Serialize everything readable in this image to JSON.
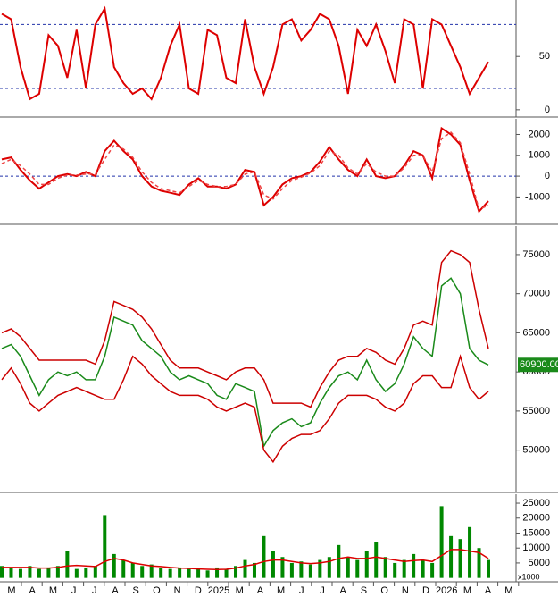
{
  "chart_data": [
    {
      "type": "line",
      "ylim": [
        -6,
        103
      ],
      "yticks": [
        0,
        50
      ],
      "levels": [
        20,
        80
      ],
      "series": [
        {
          "color": "#dd0000",
          "values": [
            90,
            85,
            40,
            10,
            15,
            70,
            60,
            30,
            75,
            20,
            80,
            95,
            40,
            25,
            15,
            20,
            10,
            30,
            60,
            80,
            20,
            15,
            75,
            70,
            30,
            25,
            85,
            40,
            15,
            40,
            80,
            85,
            65,
            75,
            90,
            85,
            60,
            15,
            75,
            60,
            80,
            55,
            25,
            85,
            80,
            20,
            85,
            80,
            60,
            40,
            15,
            30,
            45
          ]
        }
      ]
    },
    {
      "type": "line",
      "ylim": [
        -2270,
        2750
      ],
      "yticks": [
        -1000,
        0,
        1000,
        2000
      ],
      "levels": [
        0
      ],
      "series": [
        {
          "color": "#dd0000",
          "values": [
            800,
            900,
            300,
            -200,
            -600,
            -300,
            0,
            100,
            0,
            200,
            0,
            1200,
            1700,
            1200,
            800,
            0,
            -500,
            -700,
            -800,
            -900,
            -400,
            -100,
            -500,
            -500,
            -600,
            -400,
            300,
            200,
            -1400,
            -1000,
            -400,
            -100,
            0,
            200,
            700,
            1400,
            800,
            300,
            0,
            800,
            0,
            -100,
            0,
            500,
            1200,
            1000,
            -100,
            2300,
            2000,
            1500,
            -200,
            -1700,
            -1200
          ]
        },
        {
          "color": "#ee4444",
          "dashed": true,
          "values": [
            600,
            800,
            500,
            100,
            -400,
            -400,
            -100,
            50,
            50,
            100,
            100,
            800,
            1500,
            1300,
            900,
            200,
            -300,
            -600,
            -700,
            -800,
            -500,
            -200,
            -400,
            -500,
            -500,
            -400,
            100,
            200,
            -900,
            -1100,
            -600,
            -200,
            -50,
            150,
            500,
            1200,
            1000,
            400,
            100,
            600,
            200,
            0,
            0,
            400,
            1000,
            1000,
            200,
            1800,
            2100,
            1600,
            100,
            -1600,
            -1400
          ]
        }
      ]
    },
    {
      "type": "line",
      "ylim": [
        44700,
        78650
      ],
      "yticks": [
        50000,
        55000,
        60000,
        65000,
        70000,
        75000
      ],
      "last": {
        "value": 60900,
        "label": "60900.00"
      },
      "series": [
        {
          "color": "#1a8a1a",
          "values": [
            63000,
            63500,
            62000,
            59500,
            57000,
            59000,
            60000,
            59500,
            60000,
            59000,
            59000,
            62000,
            67000,
            66500,
            66000,
            64000,
            63000,
            62000,
            60000,
            59000,
            59500,
            59000,
            58500,
            57000,
            56500,
            58500,
            58000,
            57500,
            50500,
            52500,
            53500,
            54000,
            53000,
            53500,
            56000,
            58000,
            59500,
            60000,
            59000,
            61500,
            59000,
            57500,
            58500,
            61000,
            64500,
            63000,
            62000,
            71000,
            72000,
            70000,
            63000,
            61500,
            60900
          ]
        },
        {
          "color": "#cc0000",
          "values": [
            65000,
            65500,
            64500,
            63000,
            61500,
            61500,
            61500,
            61500,
            61500,
            61500,
            61000,
            64000,
            69000,
            68500,
            68000,
            67000,
            65500,
            63500,
            61500,
            60500,
            60500,
            60500,
            60000,
            59500,
            59000,
            60000,
            60500,
            60500,
            59000,
            56000,
            56000,
            56000,
            56000,
            55500,
            58000,
            60000,
            61500,
            62000,
            62000,
            63000,
            62500,
            61500,
            61000,
            63000,
            66000,
            66500,
            66000,
            74000,
            75500,
            75000,
            74000,
            68000,
            63000
          ]
        },
        {
          "color": "#cc0000",
          "values": [
            59000,
            60500,
            58500,
            56000,
            55000,
            56000,
            57000,
            57500,
            58000,
            57500,
            57000,
            56500,
            56500,
            59000,
            62000,
            61000,
            59500,
            58500,
            57500,
            57000,
            57000,
            57000,
            56500,
            55500,
            55000,
            55500,
            56000,
            55500,
            50000,
            48500,
            50500,
            51500,
            52000,
            52000,
            52500,
            54000,
            56000,
            57000,
            57000,
            57000,
            56500,
            55500,
            55000,
            56000,
            58500,
            59500,
            59500,
            58000,
            58000,
            62000,
            58000,
            56500,
            57500
          ]
        }
      ]
    },
    {
      "type": "bar",
      "ylim": [
        -1000,
        28000
      ],
      "yticks": [
        5000,
        10000,
        15000,
        20000,
        25000
      ],
      "unit": "x1000",
      "series": [
        {
          "color": "#008800",
          "values": [
            4000,
            3500,
            3000,
            4000,
            3000,
            3500,
            4000,
            9000,
            3000,
            3500,
            4000,
            21000,
            8000,
            6000,
            5000,
            4000,
            4500,
            3500,
            3000,
            3500,
            3000,
            3000,
            2500,
            3500,
            3000,
            4000,
            6000,
            5000,
            14000,
            9000,
            7000,
            5000,
            5500,
            4500,
            6000,
            7000,
            11000,
            7000,
            6000,
            9000,
            12000,
            7000,
            5000,
            6000,
            8000,
            6000,
            5000,
            24000,
            14000,
            13000,
            17000,
            10000,
            6000
          ]
        },
        {
          "color": "#dd0000",
          "line": true,
          "values": [
            3500,
            3500,
            3500,
            3500,
            3300,
            3300,
            3500,
            4000,
            4200,
            4000,
            3800,
            5500,
            6500,
            6000,
            5000,
            4500,
            4000,
            3800,
            3500,
            3300,
            3200,
            3000,
            2900,
            2800,
            2900,
            3300,
            4000,
            4500,
            5500,
            6000,
            6000,
            5500,
            5000,
            4800,
            5000,
            5500,
            6500,
            7000,
            6500,
            6500,
            7000,
            6500,
            6000,
            5500,
            5800,
            6000,
            5500,
            7500,
            9500,
            9500,
            9000,
            8500,
            6500
          ]
        }
      ]
    }
  ],
  "x_axis": {
    "labels": [
      "M",
      "A",
      "M",
      "J",
      "J",
      "A",
      "S",
      "O",
      "N",
      "D",
      "2025",
      "M",
      "A",
      "M",
      "J",
      "J",
      "A",
      "S",
      "O",
      "N",
      "D",
      "2026",
      "M",
      "A",
      "M"
    ]
  }
}
